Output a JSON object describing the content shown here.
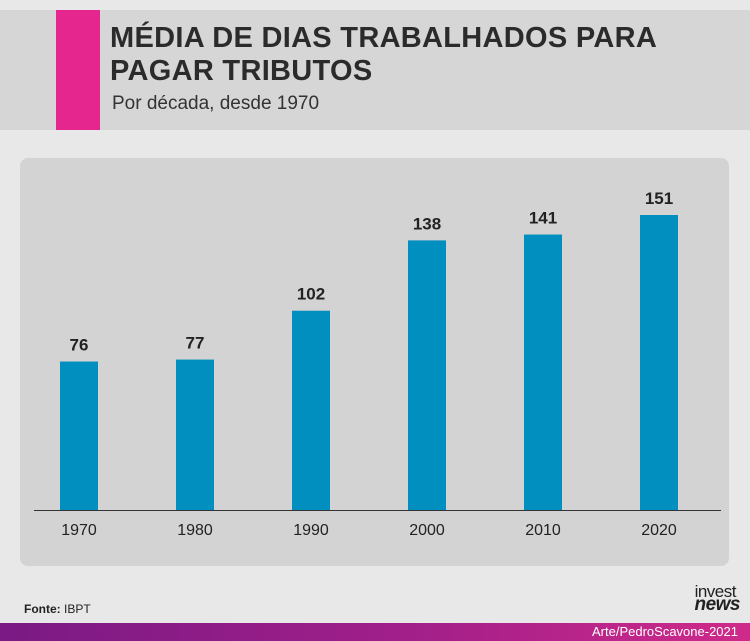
{
  "header": {
    "title": "MÉDIA DE DIAS TRABALHADOS PARA PAGAR TRIBUTOS",
    "subtitle": "Por década, desde 1970"
  },
  "chart_data": {
    "type": "bar",
    "title": "MÉDIA DE DIAS TRABALHADOS PARA PAGAR TRIBUTOS",
    "subtitle": "Por década, desde 1970",
    "categories": [
      "1970",
      "1980",
      "1990",
      "2000",
      "2010",
      "2020"
    ],
    "values": [
      76,
      77,
      102,
      138,
      141,
      151
    ],
    "xlabel": "",
    "ylabel": "",
    "ylim": [
      0,
      151
    ],
    "grid": false,
    "legend": "none",
    "bar_color": "#008fbe",
    "label_color": "#222222"
  },
  "footer": {
    "source_label": "Fonte:",
    "source_value": "IBPT",
    "logo_line1": "invest",
    "logo_line2": "news",
    "credit": "Arte/PedroScavone-2021"
  },
  "colors": {
    "accent": "#e6268f",
    "background": "#e8e8e8",
    "panel": "#d3d3d3",
    "footer_gradient_start": "#7a1a84",
    "footer_gradient_end": "#cf2a8a"
  }
}
